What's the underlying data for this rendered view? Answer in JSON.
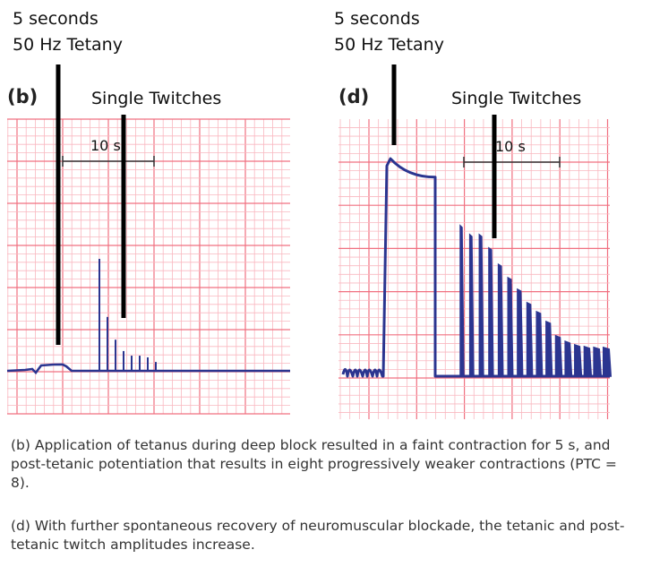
{
  "panels": [
    {
      "label": "(b)",
      "tetany_label_line1": "5 seconds",
      "tetany_label_line2": "50 Hz Tetany",
      "twitch_label": "Single Twitches",
      "scale_label": "10 s",
      "tetanus_amplitude": 0.15,
      "tetanus_decay_to": 0.15,
      "twitch_amplitudes": [
        2.66,
        1.28,
        0.74,
        0.47,
        0.36,
        0.36,
        0.32,
        0.21
      ],
      "trace_color": "#2b3590"
    },
    {
      "label": "(d)",
      "tetany_label_line1": "5 seconds",
      "tetany_label_line2": "50 Hz Tetany",
      "twitch_label": "Single Twitches",
      "scale_label": "10 s",
      "tetanus_amplitude": 5.06,
      "tetanus_decay_to": 4.63,
      "twitch_amplitudes": [
        3.5,
        3.29,
        3.29,
        2.98,
        2.6,
        2.29,
        2.02,
        1.71,
        1.5,
        1.27,
        0.94,
        0.81,
        0.73,
        0.69,
        0.67,
        0.67
      ],
      "trace_color": "#2b3590"
    }
  ],
  "colors": {
    "grid_major": "#f07080",
    "grid_minor": "#f9b8c0",
    "marker": "#000000"
  },
  "captions": {
    "b": "(b) Application of tetanus during deep block resulted in a faint contraction for 5 s, and post-tetanic potentiation that results in eight progressively weaker contractions (PTC = 8).",
    "d": "(d) With further spontaneous recovery of neuromuscular blockade, the tetanic and post-tetanic twitch amplitudes increase."
  }
}
